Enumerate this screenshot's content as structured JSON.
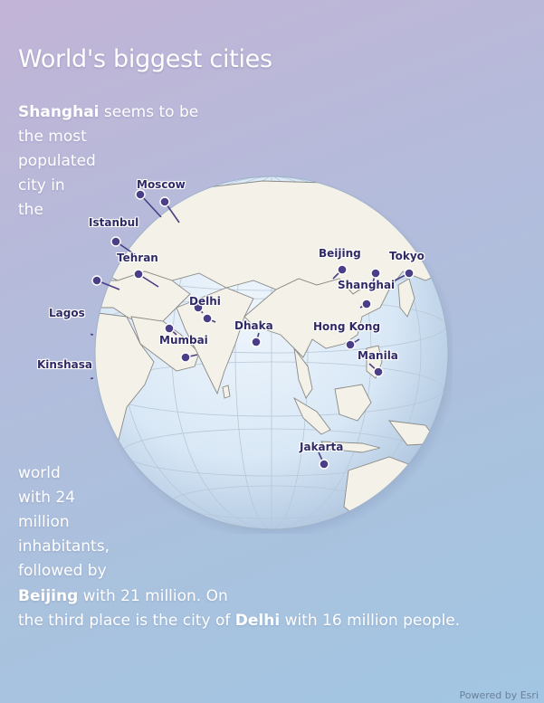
{
  "title": "World's biggest cities",
  "story": {
    "line1_city": "Shanghai",
    "line1_text": " seems to be",
    "line2": "the most",
    "line3": "populated",
    "line4": "city in",
    "line5": "the",
    "line6": "world",
    "line7": "with 24",
    "line8": "million",
    "line9": "inhabitants,",
    "line10": "followed by",
    "line11_city": "Beijing",
    "line11_text": " with 21 million. On",
    "line12_text": "the third place is the city of ",
    "line12_city": "Delhi",
    "line12_text2": " with 16 million people."
  },
  "cities": [
    {
      "name": "Moscow"
    },
    {
      "name": "Istanbul"
    },
    {
      "name": "Tehran"
    },
    {
      "name": "Lagos"
    },
    {
      "name": "Kinshasa"
    },
    {
      "name": "Delhi"
    },
    {
      "name": "Mumbai"
    },
    {
      "name": "Dhaka"
    },
    {
      "name": "Beijing"
    },
    {
      "name": "Tokyo"
    },
    {
      "name": "Shanghai"
    },
    {
      "name": "Hong Kong"
    },
    {
      "name": "Manila"
    },
    {
      "name": "Jakarta"
    }
  ],
  "credit": "Powered by Esri",
  "colors": {
    "ocean": "#d9e8f6",
    "land": "#f4f1e8",
    "marker": "#4a3f86",
    "label": "#2f2a66"
  }
}
